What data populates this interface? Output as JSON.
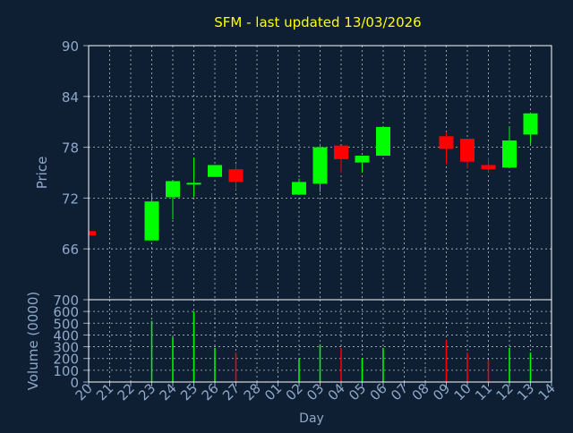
{
  "chart_data": {
    "type": "candlestick",
    "title": "SFM - last updated 13/03/2026",
    "xlabel": "Day",
    "colors": {
      "background": "#0f1f33",
      "title": "#ffff00",
      "axis_text": "#8fa8c8",
      "up": "#00ff00",
      "down": "#ff0000",
      "grid": "#ffffff"
    },
    "days": [
      "20",
      "21",
      "22",
      "23",
      "24",
      "25",
      "26",
      "27",
      "28",
      "01",
      "02",
      "03",
      "04",
      "05",
      "06",
      "07",
      "08",
      "09",
      "10",
      "11",
      "12",
      "13",
      "14"
    ],
    "price_panel": {
      "ylabel": "Price",
      "ylim": [
        60,
        90
      ],
      "yticks": [
        66,
        72,
        78,
        84,
        90
      ],
      "candles": [
        {
          "day": "20",
          "open": 68.1,
          "close": 67.6,
          "high": 68.1,
          "low": 67.6
        },
        {
          "day": "23",
          "open": 67.0,
          "close": 71.6,
          "high": 72.6,
          "low": 67.0
        },
        {
          "day": "24",
          "open": 72.1,
          "close": 74.0,
          "high": 74.0,
          "low": 69.5
        },
        {
          "day": "25",
          "open": 73.6,
          "close": 73.8,
          "high": 76.8,
          "low": 72.1
        },
        {
          "day": "26",
          "open": 74.5,
          "close": 75.9,
          "high": 75.9,
          "low": 74.5
        },
        {
          "day": "27",
          "open": 75.4,
          "close": 73.9,
          "high": 76.0,
          "low": 73.0
        },
        {
          "day": "02",
          "open": 72.4,
          "close": 73.9,
          "high": 74.3,
          "low": 72.4
        },
        {
          "day": "03",
          "open": 73.7,
          "close": 78.0,
          "high": 78.4,
          "low": 72.7
        },
        {
          "day": "04",
          "open": 78.2,
          "close": 76.6,
          "high": 78.2,
          "low": 75.0
        },
        {
          "day": "05",
          "open": 76.2,
          "close": 77.0,
          "high": 77.0,
          "low": 75.0
        },
        {
          "day": "06",
          "open": 77.0,
          "close": 80.4,
          "high": 80.4,
          "low": 77.0
        },
        {
          "day": "09",
          "open": 79.3,
          "close": 77.8,
          "high": 79.8,
          "low": 76.0
        },
        {
          "day": "10",
          "open": 79.0,
          "close": 76.3,
          "high": 79.0,
          "low": 75.5
        },
        {
          "day": "11",
          "open": 75.9,
          "close": 75.4,
          "high": 76.8,
          "low": 75.0
        },
        {
          "day": "12",
          "open": 75.6,
          "close": 78.8,
          "high": 80.4,
          "low": 75.6
        },
        {
          "day": "13",
          "open": 79.5,
          "close": 82.0,
          "high": 82.1,
          "low": 78.4
        }
      ]
    },
    "volume_panel": {
      "ylabel": "Volume (0000)",
      "ylim": [
        0,
        700
      ],
      "yticks": [
        0,
        100,
        200,
        300,
        400,
        500,
        600,
        700
      ],
      "bars": [
        {
          "day": "20",
          "value": 3,
          "direction": "down"
        },
        {
          "day": "23",
          "value": 520,
          "direction": "up"
        },
        {
          "day": "24",
          "value": 380,
          "direction": "up"
        },
        {
          "day": "25",
          "value": 600,
          "direction": "up"
        },
        {
          "day": "26",
          "value": 290,
          "direction": "up"
        },
        {
          "day": "27",
          "value": 250,
          "direction": "down"
        },
        {
          "day": "02",
          "value": 200,
          "direction": "up"
        },
        {
          "day": "03",
          "value": 320,
          "direction": "up"
        },
        {
          "day": "04",
          "value": 290,
          "direction": "down"
        },
        {
          "day": "05",
          "value": 200,
          "direction": "up"
        },
        {
          "day": "06",
          "value": 290,
          "direction": "up"
        },
        {
          "day": "09",
          "value": 360,
          "direction": "down"
        },
        {
          "day": "10",
          "value": 250,
          "direction": "down"
        },
        {
          "day": "11",
          "value": 190,
          "direction": "down"
        },
        {
          "day": "12",
          "value": 290,
          "direction": "up"
        },
        {
          "day": "13",
          "value": 250,
          "direction": "up"
        }
      ]
    }
  }
}
